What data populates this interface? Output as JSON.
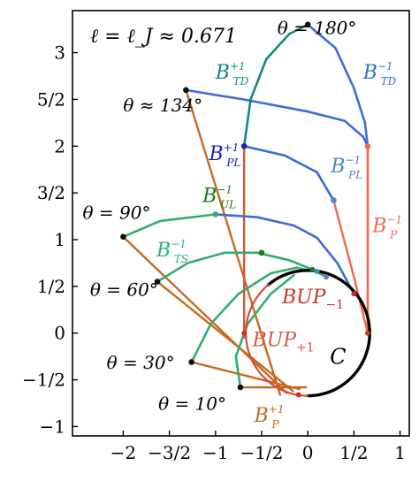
{
  "title": "ℓ = ℓ_J ≈ 0.671",
  "chart_data": {
    "type": "diagram",
    "xlim": [
      -2.55,
      1.1
    ],
    "ylim": [
      -1.1,
      3.45
    ],
    "x_ticks": [
      {
        "value": -2,
        "label": "−2"
      },
      {
        "value": -1.5,
        "label": "−3/2"
      },
      {
        "value": -1,
        "label": "−1"
      },
      {
        "value": -0.5,
        "label": "−1/2"
      },
      {
        "value": 0,
        "label": "0"
      },
      {
        "value": 0.5,
        "label": "1/2"
      },
      {
        "value": 1,
        "label": "1"
      }
    ],
    "y_ticks": [
      {
        "value": -1,
        "label": "−1"
      },
      {
        "value": -0.5,
        "label": "−1/2"
      },
      {
        "value": 0,
        "label": "0"
      },
      {
        "value": 0.5,
        "label": "1/2"
      },
      {
        "value": 1,
        "label": "1"
      },
      {
        "value": 1.5,
        "label": "3/2"
      },
      {
        "value": 2,
        "label": "2"
      },
      {
        "value": 2.5,
        "label": "5/2"
      },
      {
        "value": 3,
        "label": "3"
      }
    ],
    "angle_labels": [
      {
        "text": "θ = 180°",
        "x": -0.33,
        "y": 3.2
      },
      {
        "text": "θ ≈ 134°",
        "x": -2.0,
        "y": 2.37
      },
      {
        "text": "θ = 90°",
        "x": -2.44,
        "y": 1.22
      },
      {
        "text": "θ = 60°",
        "x": -2.36,
        "y": 0.4
      },
      {
        "text": "θ = 30°",
        "x": -2.18,
        "y": -0.38
      },
      {
        "text": "θ = 10°",
        "x": -1.62,
        "y": -0.82
      }
    ],
    "curve_labels": [
      {
        "base": "B",
        "sup": "+1",
        "sub": "TD",
        "color": "#118a7e",
        "x": -1.0,
        "y": 2.72
      },
      {
        "base": "B",
        "sup": "−1",
        "sub": "TD",
        "color": "#2f6fd0",
        "x": 0.6,
        "y": 2.72
      },
      {
        "base": "B",
        "sup": "+1",
        "sub": "PL",
        "color": "#1c1cc2",
        "x": -1.07,
        "y": 1.85
      },
      {
        "base": "B",
        "sup": "−1",
        "sub": "PL",
        "color": "#4a86c8",
        "x": 0.25,
        "y": 1.72
      },
      {
        "base": "B",
        "sup": "−1",
        "sub": "UL",
        "color": "#1a7a1a",
        "x": -1.14,
        "y": 1.4
      },
      {
        "base": "B",
        "sup": "−1",
        "sub": "TS",
        "color": "#2fb073",
        "x": -1.64,
        "y": 0.82
      },
      {
        "base": "B",
        "sup": "−1",
        "sub": "P",
        "color": "#f06b50",
        "x": 0.7,
        "y": 1.08
      },
      {
        "base": "B",
        "sup": "+1",
        "sub": "P",
        "color": "#c46a22",
        "x": -0.58,
        "y": -0.95
      }
    ],
    "region_labels": [
      {
        "text": "BUP",
        "sub": "−1",
        "color": "#c0392b",
        "x": -0.28,
        "y": 0.32
      },
      {
        "text": "BUP",
        "sub": "+1",
        "color": "#d4574a",
        "x": -0.6,
        "y": -0.14
      }
    ],
    "circle_label": {
      "text": "C",
      "x": 0.24,
      "y": -0.33
    },
    "circle": {
      "cx": 0,
      "cy": 0,
      "r": 0.671
    }
  }
}
